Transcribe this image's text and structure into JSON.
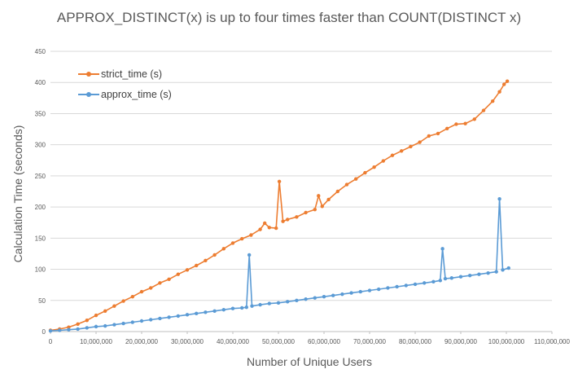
{
  "chart_data": {
    "type": "line",
    "title": "APPROX_DISTINCT(x) is up to four times faster than COUNT(DISTINCT x)",
    "xlabel": "Number of Unique Users",
    "ylabel": "Calculation Time (seconds)",
    "xlim": [
      0,
      110000000
    ],
    "ylim": [
      0,
      450
    ],
    "x_ticks": [
      "0",
      "10,000,000",
      "20,000,000",
      "30,000,000",
      "40,000,000",
      "50,000,000",
      "60,000,000",
      "70,000,000",
      "80,000,000",
      "90,000,000",
      "100,000,000",
      "110,000,000"
    ],
    "y_ticks": [
      "0",
      "50",
      "100",
      "150",
      "200",
      "250",
      "300",
      "350",
      "400",
      "450"
    ],
    "grid": "horizontal",
    "legend_position": "top-left",
    "series": [
      {
        "name": "strict_time (s)",
        "color": "#ED7D31",
        "x": [
          0,
          2000000,
          4000000,
          6000000,
          8000000,
          10000000,
          12000000,
          14000000,
          16000000,
          18000000,
          20000000,
          22000000,
          24000000,
          26000000,
          28000000,
          30000000,
          32000000,
          34000000,
          36000000,
          38000000,
          40000000,
          42000000,
          44000000,
          46000000,
          47000000,
          48000000,
          49500000,
          50200000,
          51000000,
          52000000,
          54000000,
          56000000,
          58000000,
          58800000,
          59600000,
          61000000,
          63000000,
          65000000,
          67000000,
          69000000,
          71000000,
          73000000,
          75000000,
          77000000,
          79000000,
          81000000,
          83000000,
          85000000,
          87000000,
          89000000,
          91000000,
          93000000,
          95000000,
          97000000,
          98500000,
          99500000,
          100200000
        ],
        "y": [
          2,
          4,
          7,
          12,
          18,
          26,
          33,
          41,
          49,
          56,
          64,
          70,
          78,
          84,
          92,
          99,
          106,
          114,
          123,
          133,
          142,
          149,
          155,
          164,
          174,
          167,
          166,
          241,
          177,
          180,
          184,
          191,
          196,
          218,
          201,
          212,
          225,
          236,
          245,
          255,
          264,
          274,
          283,
          290,
          297,
          304,
          314,
          318,
          326,
          333,
          334,
          341,
          355,
          370,
          385,
          397,
          402
        ]
      },
      {
        "name": "approx_time (s)",
        "color": "#5B9BD5",
        "x": [
          0,
          2000000,
          4000000,
          6000000,
          8000000,
          10000000,
          12000000,
          14000000,
          16000000,
          18000000,
          20000000,
          22000000,
          24000000,
          26000000,
          28000000,
          30000000,
          32000000,
          34000000,
          36000000,
          38000000,
          40000000,
          42000000,
          43000000,
          43600000,
          44200000,
          46000000,
          48000000,
          50000000,
          52000000,
          54000000,
          56000000,
          58000000,
          60000000,
          62000000,
          64000000,
          66000000,
          68000000,
          70000000,
          72000000,
          74000000,
          76000000,
          78000000,
          80000000,
          82000000,
          84000000,
          85500000,
          86000000,
          86600000,
          88000000,
          90000000,
          92000000,
          94000000,
          96000000,
          97800000,
          98500000,
          99200000,
          100500000
        ],
        "y": [
          1,
          2,
          3,
          4,
          6,
          8,
          9,
          11,
          13,
          15,
          17,
          19,
          21,
          23,
          25,
          27,
          29,
          31,
          33,
          35,
          37,
          38,
          39,
          123,
          41,
          43,
          45,
          46,
          48,
          50,
          52,
          54,
          56,
          58,
          60,
          62,
          64,
          66,
          68,
          70,
          72,
          74,
          76,
          78,
          80,
          82,
          133,
          85,
          86,
          88,
          90,
          92,
          94,
          96,
          213,
          99,
          102
        ]
      }
    ]
  }
}
